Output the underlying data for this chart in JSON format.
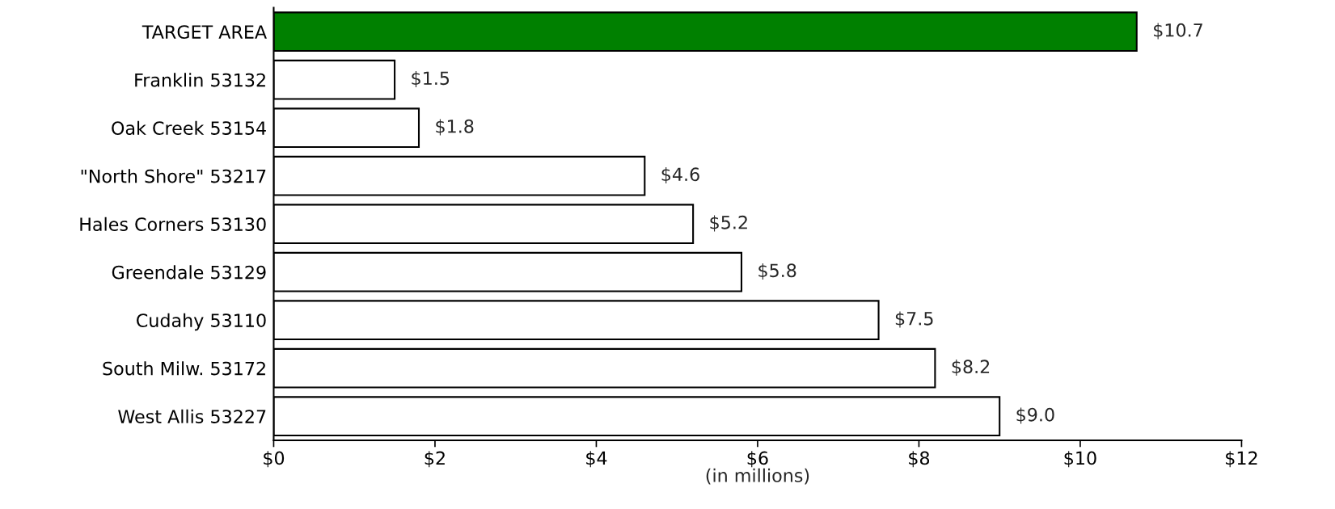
{
  "chart_data": {
    "type": "bar",
    "orientation": "horizontal",
    "xlabel": "(in millions)",
    "categories": [
      "TARGET AREA",
      "Franklin 53132",
      "Oak Creek 53154",
      "\"North Shore\" 53217",
      "Hales Corners 53130",
      "Greendale 53129",
      "Cudahy 53110",
      "South Milw. 53172",
      "West Allis 53227"
    ],
    "values": [
      10.7,
      1.5,
      1.8,
      4.6,
      5.2,
      5.8,
      7.5,
      8.2,
      9.0
    ],
    "value_labels": [
      "$10.7",
      "$1.5",
      "$1.8",
      "$4.6",
      "$5.2",
      "$5.8",
      "$7.5",
      "$8.2",
      "$9.0"
    ],
    "colors": [
      "#008000",
      "#ffffff",
      "#ffffff",
      "#ffffff",
      "#ffffff",
      "#ffffff",
      "#ffffff",
      "#ffffff",
      "#ffffff"
    ],
    "xlim": [
      0,
      12
    ],
    "xticks": [
      {
        "value": 0,
        "label": "$0"
      },
      {
        "value": 2,
        "label": "$2"
      },
      {
        "value": 4,
        "label": "$4"
      },
      {
        "value": 6,
        "label": "$6"
      },
      {
        "value": 8,
        "label": "$8"
      },
      {
        "value": 10,
        "label": "$10"
      },
      {
        "value": 12,
        "label": "$12"
      }
    ],
    "grid": false,
    "legend": false
  }
}
